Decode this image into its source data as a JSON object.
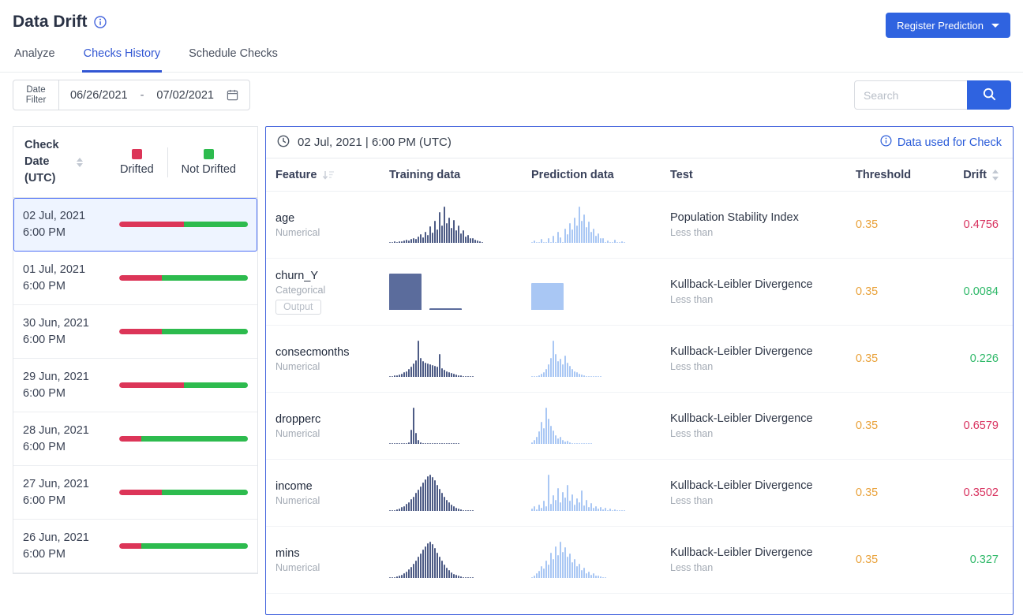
{
  "header": {
    "title": "Data Drift",
    "register_button": "Register Prediction",
    "tabs": [
      {
        "label": "Analyze",
        "active": false
      },
      {
        "label": "Checks History",
        "active": true
      },
      {
        "label": "Schedule Checks",
        "active": false
      }
    ]
  },
  "filters": {
    "date_filter_label": "Date Filter",
    "date_from": "06/26/2021",
    "date_separator": "-",
    "date_to": "07/02/2021",
    "search_placeholder": "Search"
  },
  "sidebar": {
    "header": "Check Date (UTC)",
    "legend": {
      "drifted_label": "Drifted",
      "not_drifted_label": "Not Drifted"
    },
    "items": [
      {
        "date": "02 Jul, 2021",
        "time": "6:00 PM",
        "drifted_pct": 50,
        "selected": true
      },
      {
        "date": "01 Jul, 2021",
        "time": "6:00 PM",
        "drifted_pct": 33,
        "selected": false
      },
      {
        "date": "30 Jun, 2021",
        "time": "6:00 PM",
        "drifted_pct": 33,
        "selected": false
      },
      {
        "date": "29 Jun, 2021",
        "time": "6:00 PM",
        "drifted_pct": 50,
        "selected": false
      },
      {
        "date": "28 Jun, 2021",
        "time": "6:00 PM",
        "drifted_pct": 17,
        "selected": false
      },
      {
        "date": "27 Jun, 2021",
        "time": "6:00 PM",
        "drifted_pct": 33,
        "selected": false
      },
      {
        "date": "26 Jun, 2021",
        "time": "6:00 PM",
        "drifted_pct": 17,
        "selected": false
      }
    ]
  },
  "main": {
    "timestamp": "02 Jul, 2021 | 6:00 PM (UTC)",
    "data_used_link": "Data used for Check",
    "columns": {
      "feature": "Feature",
      "training": "Training data",
      "prediction": "Prediction data",
      "test": "Test",
      "threshold": "Threshold",
      "drift": "Drift"
    }
  },
  "chart_data": {
    "type": "table",
    "rows": [
      {
        "feature": "age",
        "type": "Numerical",
        "badge": null,
        "test": "Population Stability Index",
        "condition": "Less than",
        "threshold": "0.35",
        "drift": "0.4756",
        "status": "drifted",
        "hist_kind": "numerical",
        "train_hist": [
          3,
          2,
          4,
          3,
          5,
          4,
          6,
          8,
          6,
          10,
          14,
          10,
          18,
          24,
          16,
          30,
          22,
          45,
          28,
          60,
          38,
          85,
          48,
          100,
          55,
          70,
          42,
          62,
          34,
          48,
          26,
          34,
          18,
          22,
          12,
          14,
          8,
          6,
          4,
          3
        ],
        "pred_hist": [
          0,
          6,
          0,
          0,
          10,
          0,
          0,
          14,
          0,
          20,
          0,
          30,
          16,
          0,
          40,
          24,
          55,
          36,
          70,
          48,
          100,
          60,
          78,
          44,
          58,
          30,
          40,
          20,
          26,
          12,
          14,
          0,
          6,
          0,
          0,
          8,
          0,
          0,
          5,
          0
        ]
      },
      {
        "feature": "churn_Y",
        "type": "Categorical",
        "badge": "Output",
        "test": "Kullback-Leibler Divergence",
        "condition": "Less than",
        "threshold": "0.35",
        "drift": "0.0084",
        "status": "ok",
        "hist_kind": "categorical",
        "train_hist": [
          100,
          5
        ],
        "pred_hist": [
          74
        ]
      },
      {
        "feature": "consecmonths",
        "type": "Numerical",
        "badge": null,
        "test": "Kullback-Leibler Divergence",
        "condition": "Less than",
        "threshold": "0.35",
        "drift": "0.226",
        "status": "ok",
        "hist_kind": "numerical",
        "train_hist": [
          2,
          3,
          4,
          5,
          7,
          9,
          12,
          16,
          22,
          28,
          36,
          46,
          100,
          52,
          44,
          40,
          36,
          34,
          32,
          30,
          28,
          64,
          24,
          20,
          16,
          13,
          10,
          8,
          6,
          5,
          4,
          3,
          2,
          2,
          1,
          1
        ],
        "pred_hist": [
          0,
          2,
          0,
          5,
          8,
          14,
          22,
          34,
          52,
          100,
          62,
          44,
          50,
          34,
          58,
          40,
          30,
          22,
          16,
          12,
          8,
          6,
          4,
          2,
          2,
          1,
          0,
          1,
          0,
          1
        ]
      },
      {
        "feature": "dropperc",
        "type": "Numerical",
        "badge": null,
        "test": "Kullback-Leibler Divergence",
        "condition": "Less than",
        "threshold": "0.35",
        "drift": "0.6579",
        "status": "drifted",
        "hist_kind": "numerical",
        "train_hist": [
          2,
          0,
          1,
          0,
          2,
          1,
          3,
          2,
          5,
          40,
          100,
          30,
          10,
          4,
          2,
          1,
          1,
          0,
          1,
          0,
          2,
          0,
          1,
          0,
          0,
          1,
          0,
          0,
          1,
          0
        ],
        "pred_hist": [
          4,
          10,
          20,
          34,
          60,
          44,
          100,
          70,
          50,
          36,
          24,
          16,
          20,
          10,
          6,
          8,
          4,
          2,
          1,
          2,
          0,
          0,
          0,
          0,
          0,
          0
        ]
      },
      {
        "feature": "income",
        "type": "Numerical",
        "badge": null,
        "test": "Kullback-Leibler Divergence",
        "condition": "Less than",
        "threshold": "0.35",
        "drift": "0.3502",
        "status": "drifted",
        "hist_kind": "numerical",
        "train_hist": [
          1,
          2,
          3,
          5,
          7,
          10,
          14,
          19,
          25,
          32,
          40,
          49,
          58,
          68,
          78,
          88,
          96,
          100,
          94,
          84,
          72,
          60,
          49,
          39,
          30,
          23,
          17,
          13,
          9,
          7,
          5,
          3,
          2,
          2,
          1,
          1
        ],
        "pred_hist": [
          6,
          12,
          4,
          18,
          8,
          28,
          14,
          100,
          20,
          44,
          30,
          62,
          24,
          52,
          38,
          72,
          28,
          46,
          18,
          34,
          24,
          56,
          16,
          30,
          10,
          22,
          8,
          14,
          6,
          10,
          4,
          8,
          3,
          6,
          2,
          4,
          2,
          3,
          1,
          2
        ]
      },
      {
        "feature": "mins",
        "type": "Numerical",
        "badge": null,
        "test": "Kullback-Leibler Divergence",
        "condition": "Less than",
        "threshold": "0.35",
        "drift": "0.327",
        "status": "ok",
        "hist_kind": "numerical",
        "train_hist": [
          1,
          2,
          3,
          4,
          6,
          9,
          13,
          18,
          24,
          31,
          39,
          48,
          58,
          68,
          78,
          88,
          95,
          100,
          93,
          82,
          70,
          58,
          47,
          37,
          28,
          21,
          15,
          11,
          8,
          6,
          4,
          3,
          2,
          1,
          1,
          1
        ],
        "pred_hist": [
          3,
          6,
          12,
          20,
          32,
          26,
          48,
          38,
          70,
          52,
          88,
          64,
          100,
          72,
          84,
          58,
          68,
          44,
          52,
          32,
          40,
          22,
          28,
          14,
          18,
          9,
          12,
          6,
          7,
          4,
          3,
          2
        ]
      }
    ]
  },
  "colors": {
    "accent_blue": "#2f63e0",
    "link_blue": "#2b5cd9",
    "panel_border_blue": "#4565dd",
    "selected_bg": "#eef4ff",
    "selected_border": "#4c6ef5",
    "drifted_red": "#dc3558",
    "not_drifted_green": "#2dbb4e",
    "train_bar": "#4d5b85",
    "train_bar_categorical": "#5b6c9c",
    "pred_bar": "#a9c7f4",
    "threshold_orange": "#e9a23b",
    "drift_red": "#d8325f",
    "drift_green": "#2eb868"
  }
}
